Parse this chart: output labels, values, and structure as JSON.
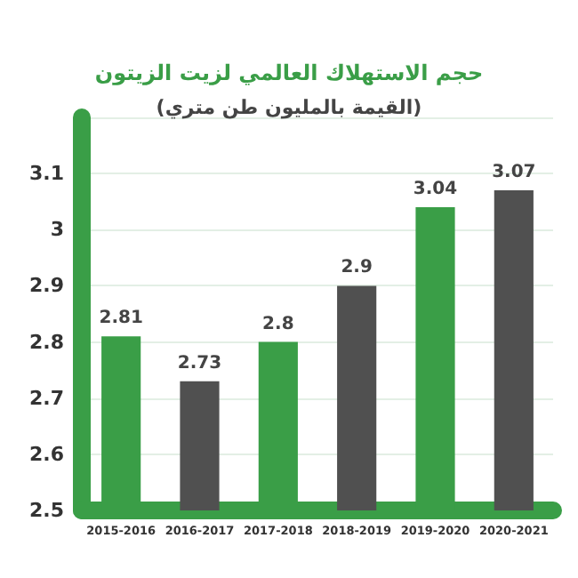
{
  "chart_data": {
    "type": "bar",
    "title": "حجم الاستهلاك العالمي لزيت الزيتون",
    "subtitle": "(القيمة بالمليون طن متري)",
    "categories": [
      "2015-2016",
      "2016-2017",
      "2017-2018",
      "2018-2019",
      "2019-2020",
      "2020-2021"
    ],
    "values": [
      2.81,
      2.73,
      2.8,
      2.9,
      3.04,
      3.07
    ],
    "colors": [
      "#3a9e47",
      "#505050",
      "#3a9e47",
      "#505050",
      "#3a9e47",
      "#505050"
    ],
    "ylim": [
      2.5,
      3.2
    ],
    "yticks": [
      2.5,
      2.6,
      2.7,
      2.8,
      2.9,
      3,
      3.1,
      {
        "value": 3.2,
        "label": null
      }
    ],
    "grid": "y",
    "data_labels": true
  }
}
